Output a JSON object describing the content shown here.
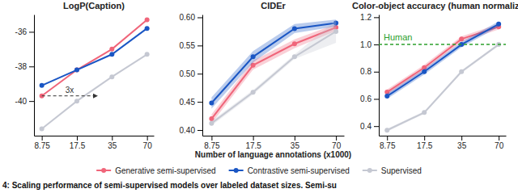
{
  "chart_data": [
    {
      "type": "line",
      "title": "LogP(Caption)",
      "log": "x",
      "x": [
        8.75,
        17.5,
        35,
        70
      ],
      "xlim": [
        7.5,
        80
      ],
      "xticks": [
        8.75,
        17.5,
        35,
        70
      ],
      "ylim": [
        -42,
        -35
      ],
      "yticks": [
        -40,
        -38,
        -36
      ],
      "series": [
        {
          "color": "#f0657a",
          "marker": "circle",
          "values": [
            -39.7,
            -38.2,
            -37.0,
            -35.3
          ]
        },
        {
          "color": "#1a56c4",
          "marker": "circle",
          "values": [
            -39.1,
            -38.2,
            -37.3,
            -35.8
          ]
        },
        {
          "color": "#c5c8d2",
          "marker": "circle",
          "values": [
            -41.6,
            -40.0,
            -38.6,
            -37.3
          ]
        }
      ],
      "annotations": [
        {
          "text": "3x",
          "x": [
            8.75,
            26.25
          ],
          "y": -39.7,
          "line_style": "dashed"
        }
      ]
    },
    {
      "type": "line",
      "title": "CIDEr",
      "log": "x",
      "x": [
        8.75,
        17.5,
        35,
        70
      ],
      "xlim": [
        7.5,
        80
      ],
      "xticks": [
        8.75,
        17.5,
        35,
        70
      ],
      "xlabel": "Number of language annotations (x1000)",
      "ylim": [
        0.39,
        0.605
      ],
      "yticks": [
        {
          "value": 0.4,
          "label": "0.40"
        },
        {
          "value": 0.45,
          "label": "0.45"
        },
        {
          "value": 0.5,
          "label": "0.50"
        },
        {
          "value": 0.55,
          "label": "0.55"
        },
        {
          "value": 0.6,
          "label": "0.60"
        }
      ],
      "legend": "bottom",
      "series": [
        {
          "name": "Generative semi-supervised",
          "color": "#f0657a",
          "marker": "circle",
          "values": [
            0.42,
            0.515,
            0.553,
            0.582
          ],
          "errors": [
            0.008,
            0.008,
            0.008,
            0.006
          ]
        },
        {
          "name": "Contrastive semi-supervised",
          "color": "#1a56c4",
          "marker": "circle",
          "values": [
            0.448,
            0.53,
            0.58,
            0.59
          ],
          "errors": [
            0.01,
            0.01,
            0.008,
            0.006
          ]
        },
        {
          "name": "Supervised",
          "color": "#c5c8d2",
          "marker": "circle",
          "values": [
            0.412,
            0.467,
            0.53,
            0.575
          ],
          "errors": [
            0.004,
            0.004,
            0.004,
            0.02
          ]
        }
      ]
    },
    {
      "type": "line",
      "title": "Color-object accuracy (human normalized)",
      "log": "x",
      "x": [
        8.75,
        17.5,
        35,
        70
      ],
      "xlim": [
        7.5,
        80
      ],
      "xticks": [
        8.75,
        17.5,
        35,
        70
      ],
      "ylim": [
        0.33,
        1.22
      ],
      "yticks": [
        0.4,
        0.6,
        0.8,
        {
          "value": 1.0,
          "label": "1.0"
        },
        1.2
      ],
      "series": [
        {
          "color": "#f0657a",
          "marker": "circle",
          "values": [
            0.65,
            0.83,
            1.04,
            1.13
          ],
          "errors": [
            0.02,
            0.02,
            0.02,
            0.02
          ]
        },
        {
          "color": "#1a56c4",
          "marker": "circle",
          "values": [
            0.62,
            0.8,
            1.0,
            1.15
          ],
          "errors": [
            0.02,
            0.02,
            0.02,
            0.02
          ]
        },
        {
          "color": "#c5c8d2",
          "marker": "circle",
          "values": [
            0.37,
            0.5,
            0.8,
            1.0
          ],
          "errors": [
            0.01,
            0.01,
            0.01,
            0.01
          ]
        }
      ],
      "annotations": [
        {
          "text": "Human",
          "y": 1.0,
          "color": "#2ca02c",
          "line_style": "dashed"
        }
      ]
    }
  ],
  "caption": "4: Scaling performance of semi-supervised models over labeled dataset sizes. Semi-su"
}
